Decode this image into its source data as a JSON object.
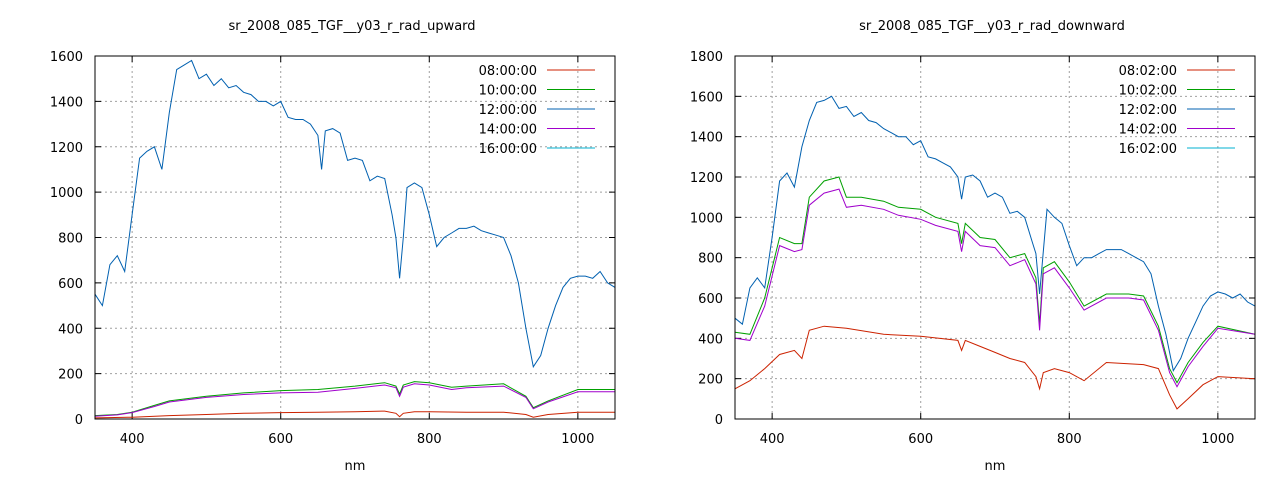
{
  "chart_data": [
    {
      "type": "line",
      "title": "sr_2008_085_TGF__y03_r_rad_upward",
      "xlabel": "nm",
      "ylabel": "",
      "xlim": [
        350,
        1050
      ],
      "ylim": [
        0,
        1600
      ],
      "xticks": [
        400,
        600,
        800,
        1000
      ],
      "yticks": [
        0,
        200,
        400,
        600,
        800,
        1000,
        1200,
        1400,
        1600
      ],
      "grid": true,
      "legend_position": "top-right",
      "series": [
        {
          "name": "08:00:00",
          "color": "#cc2200",
          "x": [
            350,
            400,
            450,
            500,
            550,
            600,
            650,
            700,
            740,
            755,
            760,
            765,
            780,
            800,
            850,
            900,
            930,
            940,
            960,
            1000,
            1050
          ],
          "y": [
            5,
            8,
            15,
            20,
            25,
            28,
            30,
            32,
            35,
            25,
            10,
            25,
            32,
            32,
            30,
            30,
            20,
            8,
            20,
            30,
            30
          ]
        },
        {
          "name": "10:00:00",
          "color": "#00a000",
          "x": [
            350,
            380,
            400,
            430,
            450,
            500,
            550,
            600,
            650,
            700,
            740,
            755,
            760,
            765,
            780,
            800,
            830,
            850,
            900,
            930,
            940,
            960,
            1000,
            1050
          ],
          "y": [
            15,
            20,
            30,
            60,
            80,
            100,
            115,
            125,
            130,
            145,
            160,
            145,
            110,
            150,
            165,
            160,
            140,
            145,
            155,
            100,
            50,
            80,
            130,
            130
          ]
        },
        {
          "name": "12:00:00",
          "color": "#0060b0",
          "x": [
            350,
            360,
            370,
            380,
            390,
            400,
            410,
            420,
            430,
            440,
            450,
            460,
            470,
            480,
            490,
            500,
            510,
            520,
            530,
            540,
            550,
            560,
            570,
            580,
            590,
            600,
            610,
            620,
            630,
            640,
            650,
            655,
            660,
            670,
            680,
            690,
            700,
            710,
            720,
            730,
            740,
            750,
            755,
            760,
            765,
            770,
            780,
            790,
            800,
            810,
            820,
            830,
            840,
            850,
            860,
            870,
            880,
            890,
            900,
            910,
            920,
            930,
            940,
            950,
            960,
            970,
            980,
            990,
            1000,
            1010,
            1020,
            1030,
            1040,
            1050
          ],
          "y": [
            550,
            500,
            680,
            720,
            650,
            900,
            1150,
            1180,
            1200,
            1100,
            1350,
            1540,
            1560,
            1580,
            1500,
            1520,
            1470,
            1500,
            1460,
            1470,
            1440,
            1430,
            1400,
            1400,
            1380,
            1400,
            1330,
            1320,
            1320,
            1300,
            1250,
            1100,
            1270,
            1280,
            1260,
            1140,
            1150,
            1140,
            1050,
            1070,
            1060,
            900,
            800,
            620,
            800,
            1020,
            1040,
            1020,
            900,
            760,
            800,
            820,
            840,
            840,
            850,
            830,
            820,
            810,
            800,
            720,
            600,
            400,
            230,
            280,
            400,
            500,
            580,
            620,
            630,
            630,
            620,
            650,
            600,
            580
          ]
        },
        {
          "name": "14:00:00",
          "color": "#a000cc",
          "x": [
            350,
            380,
            400,
            430,
            450,
            500,
            550,
            600,
            650,
            700,
            740,
            755,
            760,
            765,
            780,
            800,
            830,
            850,
            900,
            930,
            940,
            960,
            1000,
            1050
          ],
          "y": [
            12,
            18,
            28,
            55,
            75,
            95,
            108,
            115,
            118,
            135,
            150,
            138,
            100,
            140,
            155,
            150,
            130,
            138,
            145,
            95,
            45,
            75,
            120,
            120
          ]
        },
        {
          "name": "16:00:00",
          "color": "#00b0d0",
          "x": [],
          "y": []
        }
      ]
    },
    {
      "type": "line",
      "title": "sr_2008_085_TGF__y03_r_rad_downward",
      "xlabel": "nm",
      "ylabel": "",
      "xlim": [
        350,
        1050
      ],
      "ylim": [
        0,
        1800
      ],
      "xticks": [
        400,
        600,
        800,
        1000
      ],
      "yticks": [
        0,
        200,
        400,
        600,
        800,
        1000,
        1200,
        1400,
        1600,
        1800
      ],
      "grid": true,
      "legend_position": "top-right",
      "series": [
        {
          "name": "08:02:00",
          "color": "#cc2200",
          "x": [
            350,
            370,
            390,
            410,
            430,
            440,
            450,
            470,
            500,
            550,
            600,
            650,
            655,
            660,
            680,
            700,
            720,
            740,
            755,
            760,
            765,
            780,
            800,
            820,
            850,
            900,
            920,
            935,
            945,
            960,
            980,
            1000,
            1050
          ],
          "y": [
            150,
            190,
            250,
            320,
            340,
            300,
            440,
            460,
            450,
            420,
            410,
            390,
            340,
            390,
            360,
            330,
            300,
            280,
            210,
            150,
            230,
            250,
            230,
            190,
            280,
            270,
            250,
            120,
            50,
            100,
            170,
            210,
            200
          ]
        },
        {
          "name": "10:02:00",
          "color": "#00a000",
          "x": [
            350,
            370,
            390,
            410,
            430,
            440,
            450,
            470,
            490,
            500,
            520,
            550,
            570,
            600,
            620,
            650,
            655,
            660,
            680,
            700,
            720,
            740,
            755,
            760,
            765,
            780,
            800,
            820,
            850,
            880,
            900,
            920,
            935,
            945,
            960,
            980,
            1000,
            1050
          ],
          "y": [
            430,
            420,
            600,
            900,
            870,
            870,
            1100,
            1180,
            1200,
            1100,
            1100,
            1080,
            1050,
            1040,
            1000,
            970,
            870,
            970,
            900,
            890,
            800,
            820,
            700,
            470,
            750,
            780,
            680,
            560,
            620,
            620,
            610,
            460,
            250,
            180,
            280,
            380,
            460,
            420
          ]
        },
        {
          "name": "12:02:00",
          "color": "#0060b0",
          "x": [
            350,
            360,
            370,
            380,
            390,
            400,
            410,
            420,
            430,
            440,
            450,
            460,
            470,
            480,
            490,
            500,
            510,
            520,
            530,
            540,
            550,
            560,
            570,
            580,
            590,
            600,
            610,
            620,
            630,
            640,
            650,
            655,
            660,
            670,
            680,
            690,
            700,
            710,
            720,
            730,
            740,
            750,
            755,
            760,
            765,
            770,
            780,
            790,
            800,
            810,
            820,
            830,
            840,
            850,
            860,
            870,
            880,
            890,
            900,
            910,
            920,
            930,
            940,
            950,
            960,
            970,
            980,
            990,
            1000,
            1010,
            1020,
            1030,
            1040,
            1050
          ],
          "y": [
            500,
            470,
            650,
            700,
            650,
            900,
            1180,
            1220,
            1150,
            1350,
            1480,
            1570,
            1580,
            1600,
            1540,
            1550,
            1500,
            1520,
            1480,
            1470,
            1440,
            1420,
            1400,
            1400,
            1360,
            1380,
            1300,
            1290,
            1270,
            1250,
            1200,
            1090,
            1200,
            1210,
            1180,
            1100,
            1120,
            1100,
            1020,
            1030,
            1000,
            880,
            820,
            620,
            830,
            1040,
            1000,
            970,
            860,
            760,
            800,
            800,
            820,
            840,
            840,
            840,
            820,
            800,
            780,
            720,
            560,
            420,
            240,
            300,
            400,
            480,
            560,
            610,
            630,
            620,
            600,
            620,
            580,
            560
          ]
        },
        {
          "name": "14:02:00",
          "color": "#a000cc",
          "x": [
            350,
            370,
            390,
            410,
            430,
            440,
            450,
            470,
            490,
            500,
            520,
            550,
            570,
            600,
            620,
            650,
            655,
            660,
            680,
            700,
            720,
            740,
            755,
            760,
            765,
            780,
            800,
            820,
            850,
            880,
            900,
            920,
            935,
            945,
            960,
            980,
            1000,
            1050
          ],
          "y": [
            400,
            390,
            560,
            860,
            830,
            840,
            1060,
            1120,
            1140,
            1050,
            1060,
            1040,
            1010,
            990,
            960,
            930,
            830,
            930,
            860,
            850,
            760,
            790,
            670,
            440,
            720,
            750,
            650,
            540,
            600,
            600,
            590,
            440,
            230,
            160,
            260,
            360,
            450,
            420
          ]
        },
        {
          "name": "16:02:00",
          "color": "#00b0d0",
          "x": [],
          "y": []
        }
      ]
    }
  ]
}
